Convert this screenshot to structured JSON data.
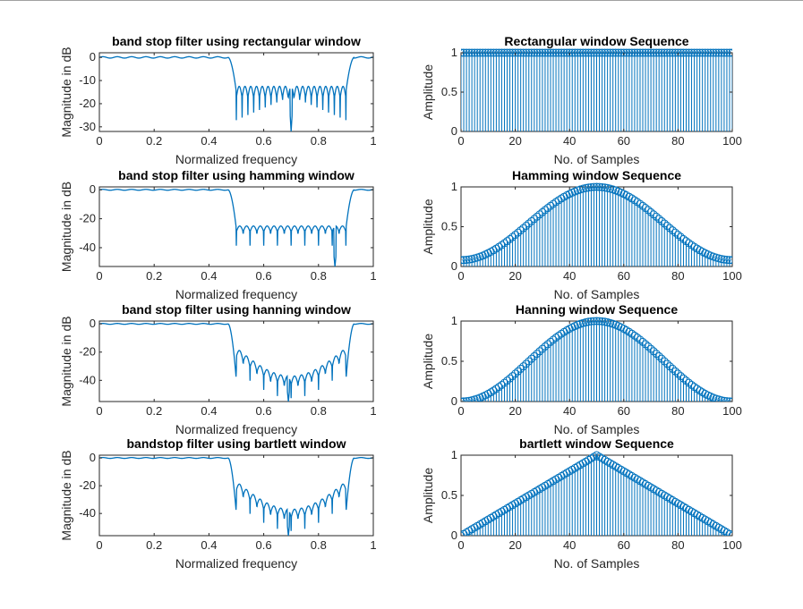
{
  "figure": {
    "line_color": "#0072BD"
  },
  "chart_data": [
    {
      "type": "line",
      "title": "band stop filter using rectangular window",
      "xlabel": "Normalized frequency",
      "ylabel": "Magnitude in dB",
      "xlim": [
        0,
        1
      ],
      "ylim": [
        -32,
        2
      ],
      "xticks": [
        0,
        0.2,
        0.4,
        0.6,
        0.8,
        1
      ],
      "yticks": [
        -30,
        -20,
        -10,
        0
      ],
      "grid": false,
      "series": [
        {
          "passband_db": 0,
          "stopband_edges": [
            0.5,
            0.9
          ],
          "stopband_floor_db": -15,
          "stopband_ripple_db": 5,
          "min_db": -32,
          "min_at": 0.7,
          "lobes": 19
        }
      ]
    },
    {
      "type": "line",
      "title": "band stop filter using hamming window",
      "xlabel": "Normalized frequency",
      "ylabel": "Magnitude in dB",
      "xlim": [
        0,
        1
      ],
      "ylim": [
        -53,
        2
      ],
      "xticks": [
        0,
        0.2,
        0.4,
        0.6,
        0.8,
        1
      ],
      "yticks": [
        -40,
        -20,
        0
      ],
      "grid": false,
      "series": [
        {
          "passband_db": 0,
          "stopband_edges": [
            0.5,
            0.9
          ],
          "stopband_floor_db": -27,
          "stopband_ripple_db": 4,
          "min_db": -53,
          "min_at": 0.86,
          "lobes": 16
        }
      ]
    },
    {
      "type": "line",
      "title": "band stop filter using hanning window",
      "xlabel": "Normalized frequency",
      "ylabel": "Magnitude in dB",
      "xlim": [
        0,
        1
      ],
      "ylim": [
        -55,
        2
      ],
      "xticks": [
        0,
        0.2,
        0.4,
        0.6,
        0.8,
        1
      ],
      "yticks": [
        -40,
        -20,
        0
      ],
      "grid": false,
      "series": [
        {
          "passband_db": 0,
          "stopband_edges": [
            0.5,
            0.9
          ],
          "stopband_floor_db": -40,
          "stopband_shape": "bowl",
          "stopband_ripple_db": 6,
          "min_db": -55,
          "min_at": 0.69,
          "lobes": 16
        }
      ]
    },
    {
      "type": "line",
      "title": "bandstop filter using bartlett window",
      "xlabel": "Normalized frequency",
      "ylabel": "Magnitude in dB",
      "xlim": [
        0,
        1
      ],
      "ylim": [
        -56,
        2
      ],
      "xticks": [
        0,
        0.2,
        0.4,
        0.6,
        0.8,
        1
      ],
      "yticks": [
        -40,
        -20,
        0
      ],
      "grid": false,
      "series": [
        {
          "passband_db": 0,
          "stopband_edges": [
            0.5,
            0.9
          ],
          "stopband_floor_db": -40,
          "stopband_shape": "bowl",
          "stopband_ripple_db": 6,
          "min_db": -56,
          "min_at": 0.69,
          "lobes": 16
        }
      ]
    },
    {
      "type": "stem",
      "title": "Rectangular window Sequence",
      "xlabel": "No. of Samples",
      "ylabel": "Amplitude",
      "xlim": [
        0,
        100
      ],
      "ylim": [
        0,
        1
      ],
      "xticks": [
        0,
        20,
        40,
        60,
        80,
        100
      ],
      "yticks": [
        0,
        0.5,
        1
      ],
      "ytick_labels": [
        "0",
        "0.5",
        "1"
      ],
      "grid": false,
      "series": [
        {
          "window": "rectangular",
          "n_start": 0,
          "n_end": 100
        }
      ]
    },
    {
      "type": "stem",
      "title": "Hamming window Sequence",
      "xlabel": "No. of Samples",
      "ylabel": "Amplitude",
      "xlim": [
        0,
        100
      ],
      "ylim": [
        0,
        1
      ],
      "xticks": [
        0,
        20,
        40,
        60,
        80,
        100
      ],
      "yticks": [
        0,
        0.5,
        1
      ],
      "ytick_labels": [
        "0",
        "0.5",
        "1"
      ],
      "grid": false,
      "series": [
        {
          "window": "hamming",
          "n_start": 0,
          "n_end": 100
        }
      ]
    },
    {
      "type": "stem",
      "title": "Hanning window Sequence",
      "xlabel": "No. of Samples",
      "ylabel": "Amplitude",
      "xlim": [
        0,
        100
      ],
      "ylim": [
        0,
        1
      ],
      "xticks": [
        0,
        20,
        40,
        60,
        80,
        100
      ],
      "yticks": [
        0,
        0.5,
        1
      ],
      "ytick_labels": [
        "0",
        "0.5",
        "1"
      ],
      "grid": false,
      "series": [
        {
          "window": "hanning",
          "n_start": 0,
          "n_end": 100
        }
      ]
    },
    {
      "type": "stem",
      "title": "bartlett window Sequence",
      "xlabel": "No. of Samples",
      "ylabel": "Amplitude",
      "xlim": [
        0,
        100
      ],
      "ylim": [
        0,
        1
      ],
      "xticks": [
        0,
        20,
        40,
        60,
        80,
        100
      ],
      "yticks": [
        0,
        0.5,
        1
      ],
      "ytick_labels": [
        "0",
        "0.5",
        "1"
      ],
      "grid": false,
      "series": [
        {
          "window": "bartlett",
          "n_start": 0,
          "n_end": 100
        }
      ]
    }
  ]
}
